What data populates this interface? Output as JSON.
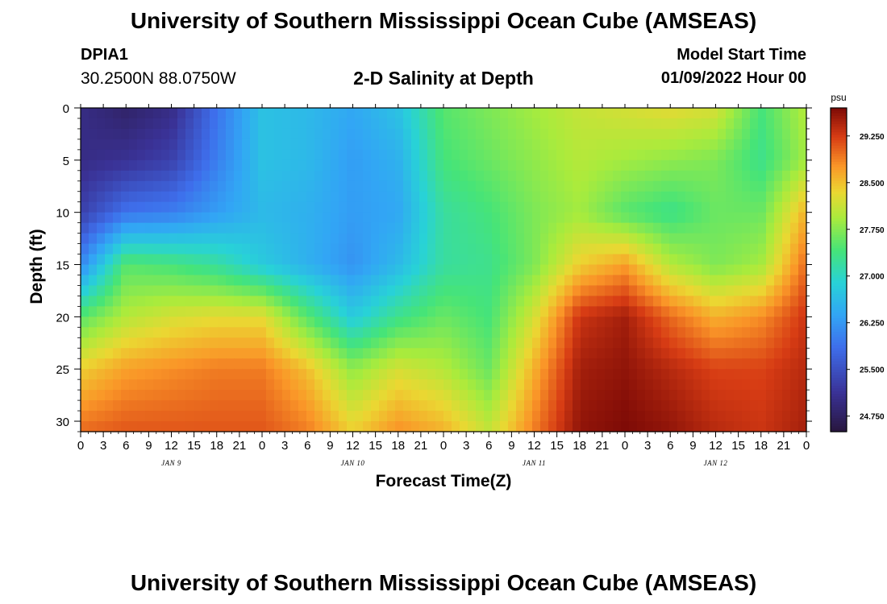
{
  "header": {
    "title": "University of Southern Mississippi Ocean Cube (AMSEAS)",
    "station": "DPIA1",
    "coords": "30.2500N  88.0750W",
    "subtitle": "2-D Salinity at Depth",
    "start_label": "Model Start Time",
    "start_value": "01/09/2022 Hour 00"
  },
  "footer": {
    "title": "University of Southern Mississippi Ocean Cube (AMSEAS)"
  },
  "chart_data": {
    "type": "heatmap",
    "title": "2-D Salinity at Depth",
    "xlabel": "Forecast Time(Z)",
    "ylabel": "Depth (ft)",
    "x_unit": "hours since 01/09/2022 00Z",
    "xlim": [
      0,
      96
    ],
    "ylim": [
      0,
      31
    ],
    "y_inverted": true,
    "x_ticks": [
      0,
      3,
      6,
      9,
      12,
      15,
      18,
      21,
      24,
      27,
      30,
      33,
      36,
      39,
      42,
      45,
      48,
      51,
      54,
      57,
      60,
      63,
      66,
      69,
      72,
      75,
      78,
      81,
      84,
      87,
      90,
      93,
      96
    ],
    "x_tick_labels": [
      "0",
      "3",
      "6",
      "9",
      "12",
      "15",
      "18",
      "21",
      "0",
      "3",
      "6",
      "9",
      "12",
      "15",
      "18",
      "21",
      "0",
      "3",
      "6",
      "9",
      "12",
      "15",
      "18",
      "21",
      "0",
      "3",
      "6",
      "9",
      "12",
      "15",
      "18",
      "21",
      "0"
    ],
    "day_labels": [
      {
        "hour": 12,
        "label": "JAN 9"
      },
      {
        "hour": 36,
        "label": "JAN 10"
      },
      {
        "hour": 60,
        "label": "JAN 11"
      },
      {
        "hour": 84,
        "label": "JAN 12"
      }
    ],
    "y_ticks": [
      0,
      5,
      10,
      15,
      20,
      25,
      30
    ],
    "colorbar": {
      "unit": "psu",
      "min": 24.5,
      "max": 29.7,
      "tick_values": [
        24.75,
        25.5,
        26.25,
        27.0,
        27.75,
        28.5,
        29.25
      ],
      "tick_labels": [
        "24.750",
        "25.500",
        "26.250",
        "27.000",
        "27.750",
        "28.500",
        "29.250"
      ]
    },
    "depths_ft": [
      0,
      5,
      10,
      15,
      20,
      25,
      31
    ],
    "times_h": [
      0,
      6,
      12,
      18,
      24,
      30,
      36,
      42,
      48,
      54,
      60,
      66,
      72,
      78,
      84,
      90,
      96
    ],
    "salinity_psu": [
      [
        25.0,
        24.8,
        25.0,
        25.9,
        26.7,
        26.6,
        26.4,
        26.7,
        27.5,
        27.7,
        27.9,
        28.1,
        28.2,
        28.3,
        28.2,
        27.4,
        28.0
      ],
      [
        25.0,
        25.1,
        25.3,
        26.0,
        26.7,
        26.6,
        26.3,
        26.5,
        27.4,
        27.6,
        27.8,
        28.0,
        27.9,
        27.8,
        27.7,
        27.3,
        27.9
      ],
      [
        25.3,
        25.9,
        26.0,
        26.3,
        26.6,
        26.5,
        26.3,
        26.4,
        27.2,
        27.4,
        27.7,
        27.9,
        27.5,
        27.3,
        27.6,
        27.6,
        28.6
      ],
      [
        26.1,
        27.5,
        27.4,
        27.2,
        26.8,
        26.5,
        26.2,
        26.6,
        27.2,
        27.3,
        27.7,
        28.4,
        28.7,
        28.0,
        27.7,
        27.9,
        29.0
      ],
      [
        27.5,
        28.0,
        28.2,
        28.3,
        28.3,
        27.5,
        26.8,
        27.3,
        27.6,
        27.4,
        28.2,
        29.3,
        29.5,
        29.0,
        28.6,
        28.8,
        29.3
      ],
      [
        28.4,
        28.7,
        28.8,
        28.9,
        28.9,
        28.5,
        27.8,
        28.2,
        28.0,
        27.6,
        28.6,
        29.5,
        29.6,
        29.4,
        29.2,
        29.2,
        29.4
      ],
      [
        29.0,
        29.1,
        29.1,
        29.1,
        29.1,
        28.9,
        28.4,
        28.8,
        28.6,
        28.1,
        28.9,
        29.6,
        29.7,
        29.6,
        29.4,
        29.3,
        29.5
      ]
    ]
  }
}
